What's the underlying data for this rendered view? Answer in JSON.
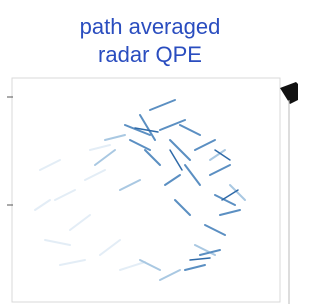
{
  "title": {
    "lines": [
      "path averaged",
      "radar QPE"
    ]
  }
}
